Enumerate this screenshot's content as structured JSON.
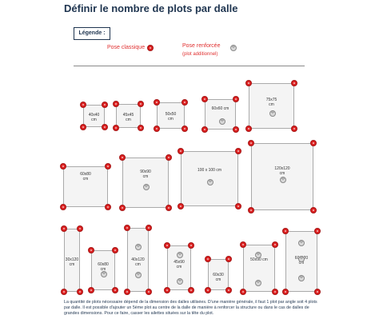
{
  "title": "Définir le nombre de plots par dalle",
  "legend": {
    "heading": "Légende :",
    "classic": "Pose classique",
    "reinforced": "Pose renforcée",
    "reinforced_note": "(plot additionnel)",
    "classic_icon": "red-pad-icon",
    "reinforced_icon": "grey-pad-icon",
    "colors": {
      "classic": "#dd2222",
      "reinforced": "#d8d8d8",
      "text": "#1f3550"
    }
  },
  "tiles": [
    {
      "id": "40x40",
      "label": [
        "40x40",
        "cm"
      ]
    },
    {
      "id": "45x45",
      "label": [
        "45x45",
        "cm"
      ]
    },
    {
      "id": "50x50",
      "label": [
        "50x50",
        "cm"
      ]
    },
    {
      "id": "60x60",
      "label": [
        "60x60 cm"
      ]
    },
    {
      "id": "75x75",
      "label": [
        "75x75",
        "cm"
      ]
    },
    {
      "id": "60x80",
      "label": [
        "60x80",
        "cm"
      ]
    },
    {
      "id": "90x90",
      "label": [
        "90x90",
        "cm"
      ]
    },
    {
      "id": "100x100",
      "label": [
        "100 x 100 cm"
      ]
    },
    {
      "id": "120x120",
      "label": [
        "120x120",
        "cm"
      ]
    },
    {
      "id": "30x120",
      "label": [
        "30x120",
        "cm"
      ]
    },
    {
      "id": "60x80b",
      "label": [
        "60x80",
        "cm"
      ]
    },
    {
      "id": "40x120",
      "label": [
        "40x120",
        "cm"
      ]
    },
    {
      "id": "45x90",
      "label": [
        "45x90",
        "cm"
      ]
    },
    {
      "id": "60x30",
      "label": [
        "60x30",
        "cm"
      ]
    },
    {
      "id": "50x90",
      "label": [
        "50x90 cm"
      ]
    },
    {
      "id": "60x120",
      "label": [
        "60x120",
        "cm"
      ]
    }
  ],
  "paragraph": "La quantité de plots nécessaire dépend de la dimension des dalles utilisées. D'une manière générale, il faut 1 plot par angle soit 4 plots par dalle. Il est possible d'ajouter un 5ème plot au centre de la dalle de manière à renforcer la structure ou dans le cas de dalles de grandes dimensions. Pour ce faire, casser les ailettes situées sur la tête du plot."
}
